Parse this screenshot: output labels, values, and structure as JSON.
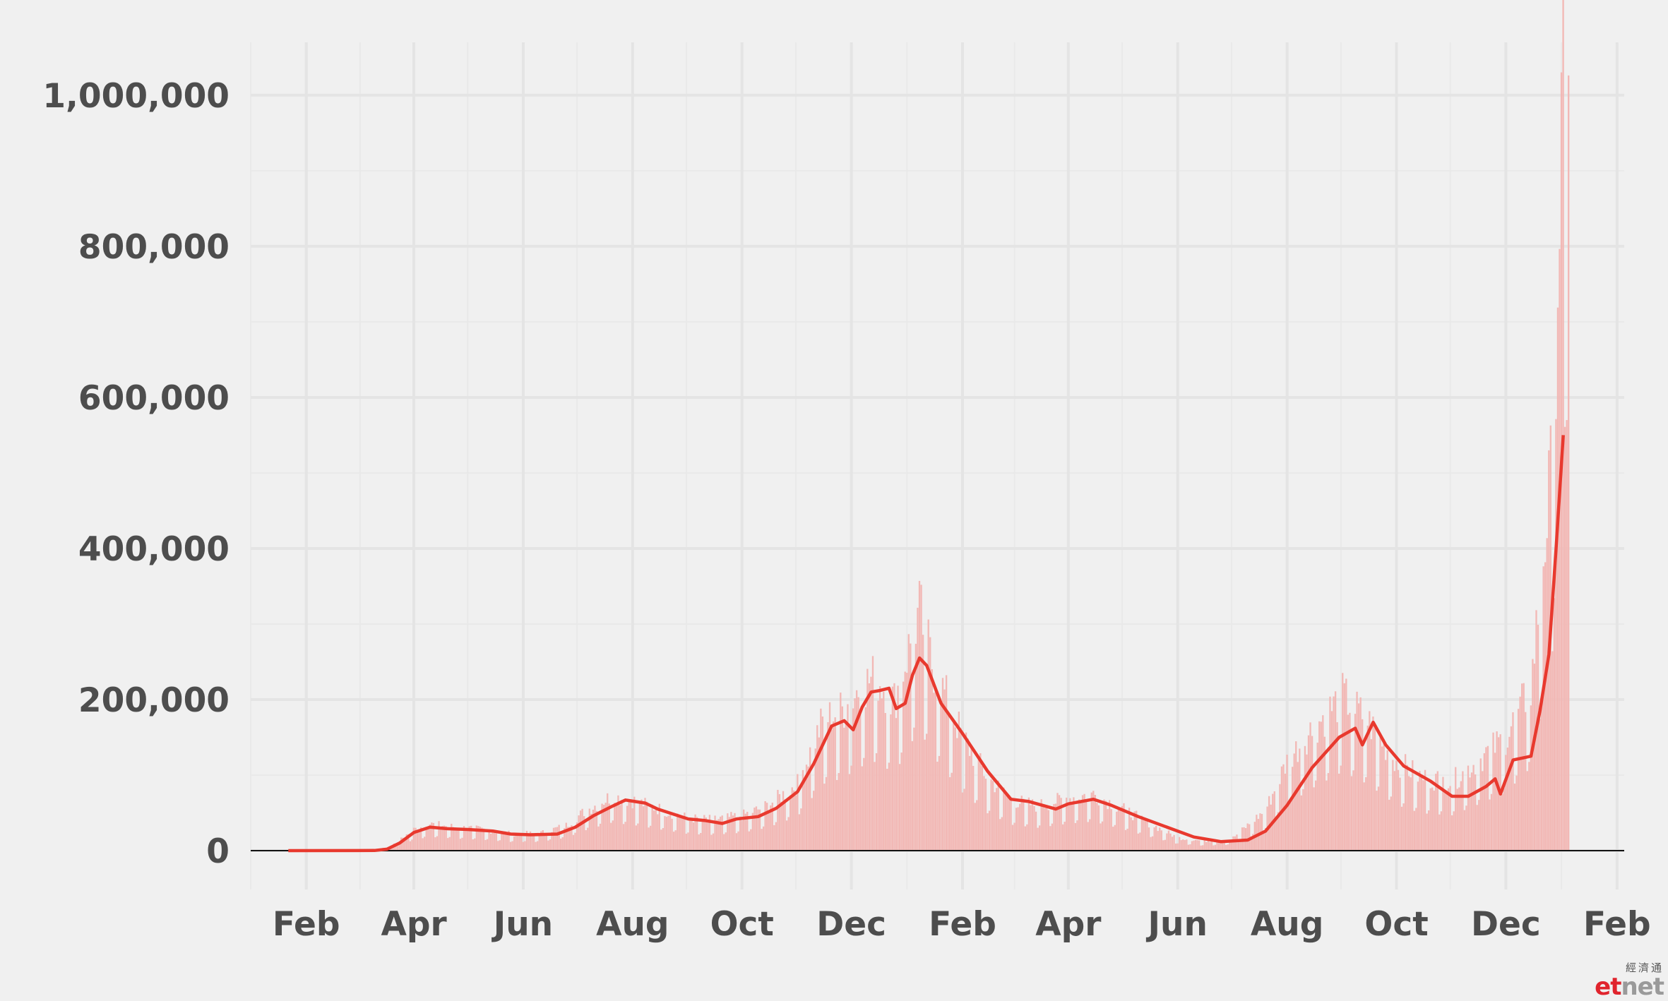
{
  "chart_data": {
    "type": "bar",
    "title": "",
    "xlabel": "",
    "ylabel": "",
    "ylim": [
      0,
      1070000
    ],
    "xlim": [
      "2020-01-01",
      "2022-02-05"
    ],
    "grid": true,
    "y_ticks": [
      {
        "value": 0,
        "label": "0"
      },
      {
        "value": 200000,
        "label": "200,000"
      },
      {
        "value": 400000,
        "label": "400,000"
      },
      {
        "value": 600000,
        "label": "600,000"
      },
      {
        "value": 800000,
        "label": "800,000"
      },
      {
        "value": 1000000,
        "label": "1,000,000"
      }
    ],
    "x_ticks": [
      {
        "date": "2020-02-01",
        "label": "Feb"
      },
      {
        "date": "2020-04-01",
        "label": "Apr"
      },
      {
        "date": "2020-06-01",
        "label": "Jun"
      },
      {
        "date": "2020-08-01",
        "label": "Aug"
      },
      {
        "date": "2020-10-01",
        "label": "Oct"
      },
      {
        "date": "2020-12-01",
        "label": "Dec"
      },
      {
        "date": "2021-02-01",
        "label": "Feb"
      },
      {
        "date": "2021-04-01",
        "label": "Apr"
      },
      {
        "date": "2021-06-01",
        "label": "Jun"
      },
      {
        "date": "2021-08-01",
        "label": "Aug"
      },
      {
        "date": "2021-10-01",
        "label": "Oct"
      },
      {
        "date": "2021-12-01",
        "label": "Dec"
      },
      {
        "date": "2022-02-01",
        "label": "Feb"
      }
    ],
    "series": [
      {
        "type": "bar",
        "color": "#f2b8b5",
        "points": [
          [
            "2020-01-22",
            0
          ],
          [
            "2020-02-15",
            10
          ],
          [
            "2020-03-10",
            300
          ],
          [
            "2020-03-20",
            6000
          ],
          [
            "2020-04-01",
            26000
          ],
          [
            "2020-04-10",
            33000
          ],
          [
            "2020-04-25",
            29000
          ],
          [
            "2020-05-10",
            26000
          ],
          [
            "2020-05-25",
            21000
          ],
          [
            "2020-06-10",
            21000
          ],
          [
            "2020-06-25",
            31000
          ],
          [
            "2020-07-05",
            48000
          ],
          [
            "2020-07-20",
            67000
          ],
          [
            "2020-08-01",
            62000
          ],
          [
            "2020-08-15",
            52000
          ],
          [
            "2020-09-01",
            40000
          ],
          [
            "2020-09-15",
            38000
          ],
          [
            "2020-10-01",
            43000
          ],
          [
            "2020-10-15",
            55000
          ],
          [
            "2020-11-01",
            82000
          ],
          [
            "2020-11-15",
            160000
          ],
          [
            "2020-11-27",
            175000
          ],
          [
            "2020-12-05",
            200000
          ],
          [
            "2020-12-15",
            215000
          ],
          [
            "2020-12-25",
            185000
          ],
          [
            "2021-01-08",
            295000
          ],
          [
            "2021-01-15",
            230000
          ],
          [
            "2021-02-01",
            140000
          ],
          [
            "2021-02-15",
            90000
          ],
          [
            "2021-03-01",
            62000
          ],
          [
            "2021-03-15",
            55000
          ],
          [
            "2021-04-01",
            65000
          ],
          [
            "2021-04-15",
            70000
          ],
          [
            "2021-05-01",
            52000
          ],
          [
            "2021-05-15",
            35000
          ],
          [
            "2021-06-01",
            16000
          ],
          [
            "2021-06-15",
            12000
          ],
          [
            "2021-07-01",
            14000
          ],
          [
            "2021-07-20",
            50000
          ],
          [
            "2021-08-01",
            110000
          ],
          [
            "2021-08-15",
            150000
          ],
          [
            "2021-09-01",
            190000
          ],
          [
            "2021-09-15",
            160000
          ],
          [
            "2021-10-01",
            110000
          ],
          [
            "2021-10-15",
            90000
          ],
          [
            "2021-11-01",
            85000
          ],
          [
            "2021-11-15",
            110000
          ],
          [
            "2021-12-01",
            140000
          ],
          [
            "2021-12-15",
            200000
          ],
          [
            "2021-12-27",
            480000
          ],
          [
            "2022-01-03",
            1020000
          ],
          [
            "2022-01-05",
            880000
          ]
        ]
      },
      {
        "type": "line",
        "color": "#e8392e",
        "points": [
          [
            "2020-01-22",
            0
          ],
          [
            "2020-03-10",
            200
          ],
          [
            "2020-03-17",
            2000
          ],
          [
            "2020-03-24",
            10000
          ],
          [
            "2020-04-01",
            24000
          ],
          [
            "2020-04-10",
            31000
          ],
          [
            "2020-04-20",
            29000
          ],
          [
            "2020-05-01",
            28000
          ],
          [
            "2020-05-15",
            26000
          ],
          [
            "2020-05-25",
            22000
          ],
          [
            "2020-06-05",
            21000
          ],
          [
            "2020-06-20",
            22000
          ],
          [
            "2020-06-30",
            31000
          ],
          [
            "2020-07-10",
            46000
          ],
          [
            "2020-07-20",
            58000
          ],
          [
            "2020-07-28",
            67000
          ],
          [
            "2020-08-08",
            63000
          ],
          [
            "2020-08-15",
            55000
          ],
          [
            "2020-09-01",
            42000
          ],
          [
            "2020-09-10",
            40000
          ],
          [
            "2020-09-20",
            36000
          ],
          [
            "2020-09-28",
            42000
          ],
          [
            "2020-10-10",
            45000
          ],
          [
            "2020-10-20",
            56000
          ],
          [
            "2020-11-01",
            78000
          ],
          [
            "2020-11-10",
            115000
          ],
          [
            "2020-11-20",
            165000
          ],
          [
            "2020-11-27",
            172000
          ],
          [
            "2020-12-02",
            160000
          ],
          [
            "2020-12-07",
            190000
          ],
          [
            "2020-12-12",
            210000
          ],
          [
            "2020-12-17",
            212000
          ],
          [
            "2020-12-22",
            215000
          ],
          [
            "2020-12-26",
            188000
          ],
          [
            "2020-12-31",
            195000
          ],
          [
            "2021-01-04",
            232000
          ],
          [
            "2021-01-08",
            255000
          ],
          [
            "2021-01-12",
            245000
          ],
          [
            "2021-01-20",
            195000
          ],
          [
            "2021-02-01",
            155000
          ],
          [
            "2021-02-15",
            105000
          ],
          [
            "2021-02-28",
            68000
          ],
          [
            "2021-03-10",
            65000
          ],
          [
            "2021-03-25",
            55000
          ],
          [
            "2021-04-01",
            62000
          ],
          [
            "2021-04-15",
            68000
          ],
          [
            "2021-04-25",
            60000
          ],
          [
            "2021-05-10",
            45000
          ],
          [
            "2021-05-25",
            32000
          ],
          [
            "2021-06-10",
            18000
          ],
          [
            "2021-06-25",
            12000
          ],
          [
            "2021-07-10",
            14000
          ],
          [
            "2021-07-20",
            26000
          ],
          [
            "2021-08-01",
            60000
          ],
          [
            "2021-08-15",
            110000
          ],
          [
            "2021-08-30",
            150000
          ],
          [
            "2021-09-08",
            162000
          ],
          [
            "2021-09-12",
            140000
          ],
          [
            "2021-09-18",
            170000
          ],
          [
            "2021-09-25",
            140000
          ],
          [
            "2021-10-05",
            112000
          ],
          [
            "2021-10-20",
            92000
          ],
          [
            "2021-11-01",
            72000
          ],
          [
            "2021-11-10",
            72000
          ],
          [
            "2021-11-20",
            85000
          ],
          [
            "2021-11-25",
            95000
          ],
          [
            "2021-11-28",
            75000
          ],
          [
            "2021-12-05",
            120000
          ],
          [
            "2021-12-15",
            125000
          ],
          [
            "2021-12-20",
            185000
          ],
          [
            "2021-12-25",
            260000
          ],
          [
            "2021-12-29",
            400000
          ],
          [
            "2022-01-02",
            550000
          ]
        ]
      }
    ]
  },
  "branding": {
    "logo_cn": "經濟通",
    "logo_et": "et",
    "logo_net": "net"
  }
}
